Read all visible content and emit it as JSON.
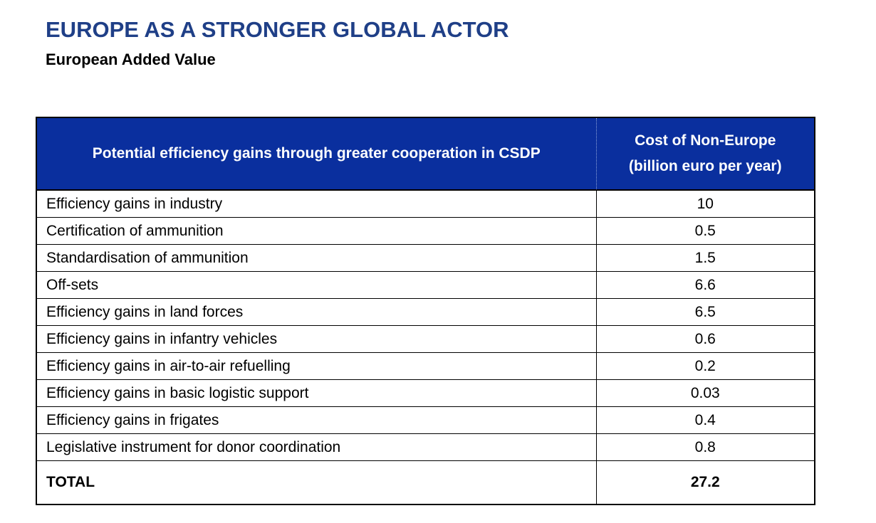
{
  "title": "EUROPE AS A STRONGER GLOBAL ACTOR",
  "subtitle": "European Added Value",
  "table": {
    "header": {
      "left": "Potential efficiency gains through greater cooperation in CSDP",
      "right_line1": "Cost of Non-Europe",
      "right_line2": "(billion euro per year)"
    },
    "rows": [
      {
        "label": "Efficiency gains in industry",
        "value": "10"
      },
      {
        "label": "Certification of ammunition",
        "value": "0.5"
      },
      {
        "label": "Standardisation of ammunition",
        "value": "1.5"
      },
      {
        "label": "Off-sets",
        "value": "6.6"
      },
      {
        "label": "Efficiency gains in land forces",
        "value": "6.5"
      },
      {
        "label": "Efficiency gains in infantry vehicles",
        "value": "0.6"
      },
      {
        "label": "Efficiency gains in air-to-air refuelling",
        "value": "0.2"
      },
      {
        "label": "Efficiency gains in basic logistic support",
        "value": "0.03"
      },
      {
        "label": "Efficiency gains in frigates",
        "value": "0.4"
      },
      {
        "label": "Legislative instrument for donor coordination",
        "value": "0.8"
      }
    ],
    "total": {
      "label": "TOTAL",
      "value": "27.2"
    }
  },
  "colors": {
    "title": "#1f3f87",
    "header_background": "#0a2f9e",
    "header_text": "#ffffff"
  }
}
